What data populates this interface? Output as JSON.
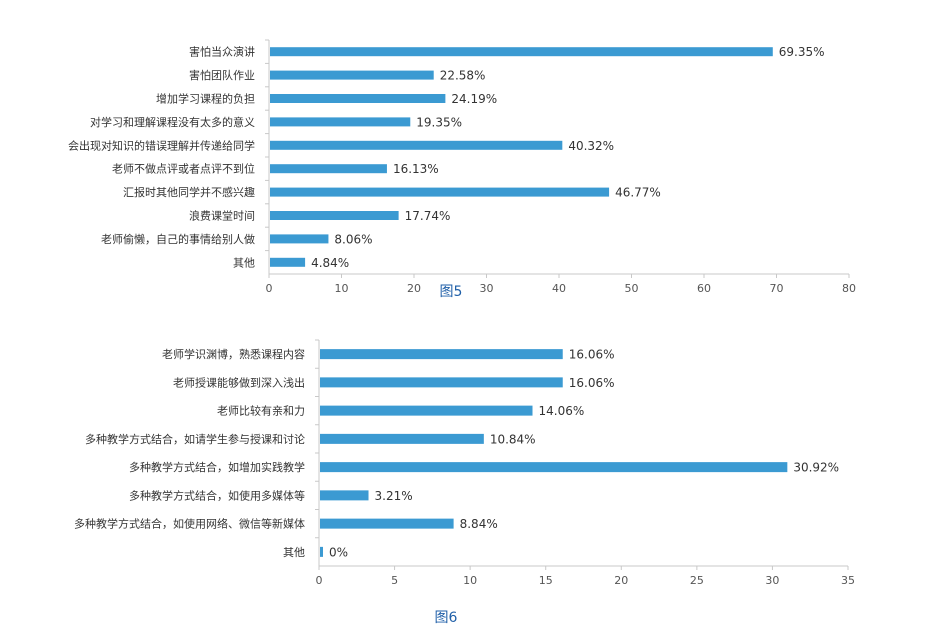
{
  "chart_data": [
    {
      "type": "bar",
      "orientation": "horizontal",
      "categories": [
        "害怕当众演讲",
        "害怕团队作业",
        "增加学习课程的负担",
        "对学习和理解课程没有太多的意义",
        "会出现对知识的错误理解并传递给同学",
        "老师不做点评或者点评不到位",
        "汇报时其他同学并不感兴趣",
        "浪费课堂时间",
        "老师偷懒，自己的事情给别人做",
        "其他"
      ],
      "values": [
        69.35,
        22.58,
        24.19,
        19.35,
        40.32,
        16.13,
        46.77,
        17.74,
        8.06,
        4.84
      ],
      "value_labels": [
        "69.35%",
        "22.58%",
        "24.19%",
        "19.35%",
        "40.32%",
        "16.13%",
        "46.77%",
        "17.74%",
        "8.06%",
        "4.84%"
      ],
      "xlim": [
        0,
        80
      ],
      "x_ticks": [
        "0",
        "10",
        "20",
        "30",
        "40",
        "50",
        "60",
        "70",
        "80"
      ],
      "caption": "图5",
      "bar_color": "#3b9ad2",
      "grid": false
    },
    {
      "type": "bar",
      "orientation": "horizontal",
      "categories": [
        "老师学识渊博，熟悉课程内容",
        "老师授课能够做到深入浅出",
        "老师比较有亲和力",
        "多种教学方式结合，如请学生参与授课和讨论",
        "多种教学方式结合，如增加实践教学",
        "多种教学方式结合，如使用多媒体等",
        "多种教学方式结合，如使用网络、微信等新媒体",
        "其他"
      ],
      "values": [
        16.06,
        16.06,
        14.06,
        10.84,
        30.92,
        3.21,
        8.84,
        0
      ],
      "value_labels": [
        "16.06%",
        "16.06%",
        "14.06%",
        "10.84%",
        "30.92%",
        "3.21%",
        "8.84%",
        "0%"
      ],
      "xlim": [
        0,
        35
      ],
      "x_ticks": [
        "0",
        "5",
        "10",
        "15",
        "20",
        "25",
        "30",
        "35"
      ],
      "caption": "图6",
      "bar_color": "#3b9ad2",
      "grid": false
    }
  ]
}
